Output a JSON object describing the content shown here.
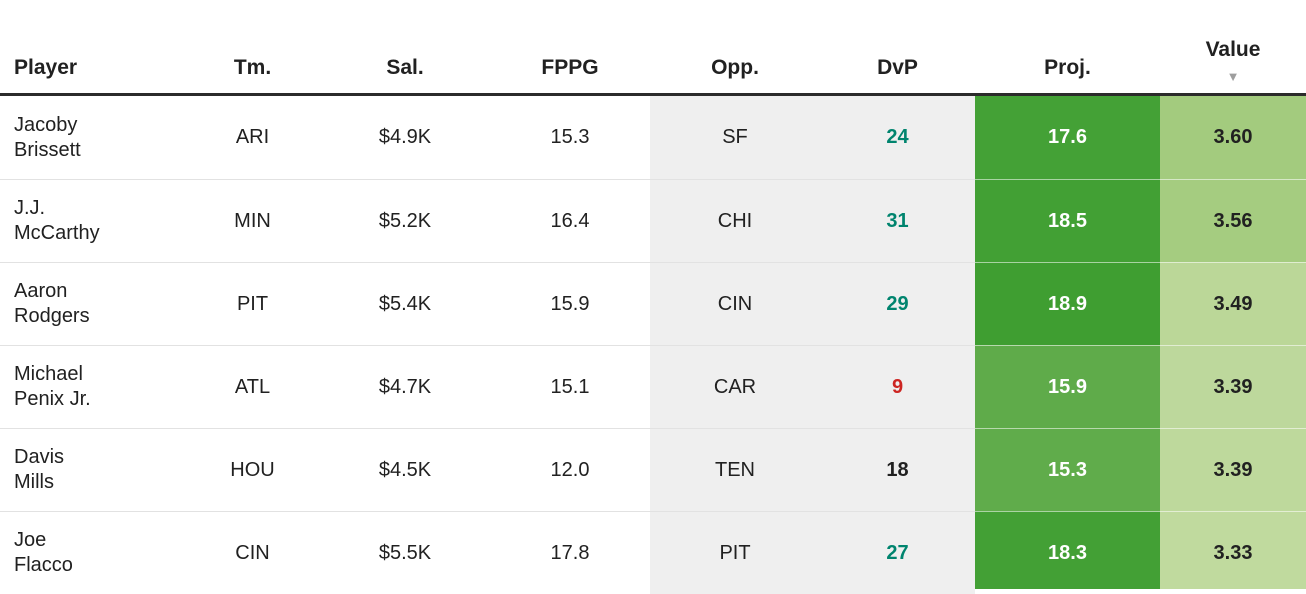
{
  "table": {
    "columns": [
      {
        "label": "Player"
      },
      {
        "label": "Tm."
      },
      {
        "label": "Sal."
      },
      {
        "label": "FPPG"
      },
      {
        "label": "Opp."
      },
      {
        "label": "DvP"
      },
      {
        "label": "Proj."
      },
      {
        "label": "Value",
        "sorted": "desc"
      }
    ],
    "sort_indicator": "▼",
    "rows": [
      {
        "player_line1": "Jacoby",
        "player_line2": "Brissett",
        "tm": "ARI",
        "sal": "$4.9K",
        "fppg": "15.3",
        "opp": "SF",
        "dvp": "24",
        "dvp_color": "#00846e",
        "proj": "17.6",
        "proj_bg": "#44a136",
        "value": "3.60",
        "value_bg": "#a3cb7e"
      },
      {
        "player_line1": "J.J.",
        "player_line2": "McCarthy",
        "tm": "MIN",
        "sal": "$5.2K",
        "fppg": "16.4",
        "opp": "CHI",
        "dvp": "31",
        "dvp_color": "#00846e",
        "proj": "18.5",
        "proj_bg": "#42a034",
        "value": "3.56",
        "value_bg": "#a5cc80"
      },
      {
        "player_line1": "Aaron",
        "player_line2": "Rodgers",
        "tm": "PIT",
        "sal": "$5.4K",
        "fppg": "15.9",
        "opp": "CIN",
        "dvp": "29",
        "dvp_color": "#00846e",
        "proj": "18.9",
        "proj_bg": "#3f9e31",
        "value": "3.49",
        "value_bg": "#bbd798"
      },
      {
        "player_line1": "Michael",
        "player_line2": "Penix Jr.",
        "tm": "ATL",
        "sal": "$4.7K",
        "fppg": "15.1",
        "opp": "CAR",
        "dvp": "9",
        "dvp_color": "#cd2522",
        "proj": "15.9",
        "proj_bg": "#5fab4a",
        "value": "3.39",
        "value_bg": "#bdd89c"
      },
      {
        "player_line1": "Davis",
        "player_line2": "Mills",
        "tm": "HOU",
        "sal": "$4.5K",
        "fppg": "12.0",
        "opp": "TEN",
        "dvp": "18",
        "dvp_color": "#212121",
        "proj": "15.3",
        "proj_bg": "#60ac4b",
        "value": "3.39",
        "value_bg": "#bed99c"
      },
      {
        "player_line1": "Joe",
        "player_line2": "Flacco",
        "tm": "CIN",
        "sal": "$5.5K",
        "fppg": "17.8",
        "opp": "PIT",
        "dvp": "27",
        "dvp_color": "#00846e",
        "proj": "18.3",
        "proj_bg": "#43a035",
        "value": "3.33",
        "value_bg": "#c0da9e"
      }
    ],
    "colors": {
      "header_border": "#2b2b2b",
      "muted_column_bg": "#efefef",
      "row_separator": "#e2e2e2",
      "text": "#212121",
      "proj_text": "#ffffff",
      "dvp_good": "#00846e",
      "dvp_bad": "#cd2522",
      "dvp_neutral": "#212121",
      "sort_arrow": "#9e9e9e"
    }
  }
}
